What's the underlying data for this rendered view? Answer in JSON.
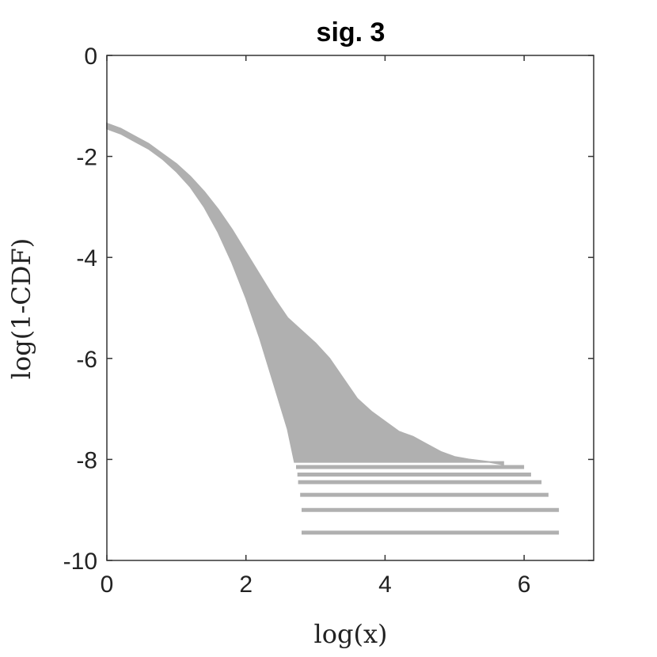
{
  "chart_data": {
    "type": "area",
    "title": "sig. 3",
    "xlabel": "log(x)",
    "ylabel": "log(1-CDF)",
    "xlim": [
      0,
      7
    ],
    "ylim": [
      -10,
      0
    ],
    "xticks": [
      0,
      2,
      4,
      6
    ],
    "yticks": [
      0,
      -2,
      -4,
      -6,
      -8,
      -10
    ],
    "xtick_labels": [
      "0",
      "2",
      "4",
      "6"
    ],
    "ytick_labels": [
      "0",
      "-2",
      "-4",
      "-6",
      "-8",
      "-10"
    ],
    "grid": false,
    "legend": "none",
    "color": "#b0b0b0",
    "series": [
      {
        "upper_envelope": [
          [
            0.0,
            -1.35
          ],
          [
            0.2,
            -1.45
          ],
          [
            0.4,
            -1.6
          ],
          [
            0.6,
            -1.75
          ],
          [
            0.8,
            -1.95
          ],
          [
            1.0,
            -2.15
          ],
          [
            1.2,
            -2.4
          ],
          [
            1.4,
            -2.7
          ],
          [
            1.6,
            -3.05
          ],
          [
            1.8,
            -3.45
          ],
          [
            2.0,
            -3.9
          ],
          [
            2.2,
            -4.35
          ],
          [
            2.4,
            -4.8
          ],
          [
            2.6,
            -5.2
          ],
          [
            2.8,
            -5.45
          ],
          [
            3.0,
            -5.7
          ],
          [
            3.2,
            -6.0
          ],
          [
            3.4,
            -6.4
          ],
          [
            3.6,
            -6.8
          ],
          [
            3.8,
            -7.05
          ],
          [
            4.0,
            -7.25
          ],
          [
            4.2,
            -7.45
          ],
          [
            4.4,
            -7.55
          ],
          [
            4.6,
            -7.7
          ],
          [
            4.8,
            -7.85
          ],
          [
            5.0,
            -7.95
          ],
          [
            5.2,
            -8.0
          ],
          [
            5.5,
            -8.05
          ],
          [
            5.7,
            -8.1
          ]
        ],
        "lower_envelope": [
          [
            0.0,
            -1.45
          ],
          [
            0.2,
            -1.55
          ],
          [
            0.4,
            -1.7
          ],
          [
            0.6,
            -1.85
          ],
          [
            0.8,
            -2.05
          ],
          [
            1.0,
            -2.3
          ],
          [
            1.2,
            -2.6
          ],
          [
            1.4,
            -3.0
          ],
          [
            1.6,
            -3.5
          ],
          [
            1.8,
            -4.1
          ],
          [
            2.0,
            -4.8
          ],
          [
            2.2,
            -5.6
          ],
          [
            2.4,
            -6.5
          ],
          [
            2.6,
            -7.4
          ],
          [
            2.7,
            -8.05
          ],
          [
            5.7,
            -8.05
          ]
        ]
      }
    ],
    "tail_lines": [
      {
        "x": [
          2.72,
          6.0
        ],
        "y": -8.15
      },
      {
        "x": [
          2.74,
          6.1
        ],
        "y": -8.3
      },
      {
        "x": [
          2.75,
          6.25
        ],
        "y": -8.45
      },
      {
        "x": [
          2.78,
          6.35
        ],
        "y": -8.7
      },
      {
        "x": [
          2.8,
          6.5
        ],
        "y": -9.0
      },
      {
        "x": [
          2.8,
          6.5
        ],
        "y": -9.45
      }
    ]
  }
}
